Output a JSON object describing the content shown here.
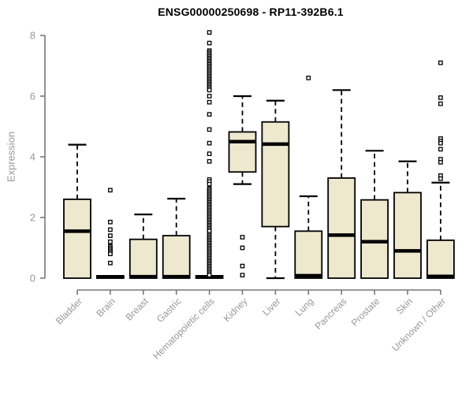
{
  "chart_data": {
    "type": "boxplot",
    "title": "ENSG00000250698 - RP11-392B6.1",
    "ylabel": "Expression",
    "xlabel": "",
    "ylim": [
      0,
      8
    ],
    "yticks": [
      0,
      2,
      4,
      6,
      8
    ],
    "grid": false,
    "legend": "none",
    "categories": [
      "Bladder",
      "Brain",
      "Breast",
      "Gastric",
      "Hematopoietic cells",
      "Kidney",
      "Liver",
      "Lung",
      "Pancreas",
      "Prostate",
      "Skin",
      "Unknown / Other"
    ],
    "boxes": [
      {
        "category": "Bladder",
        "whisker_low": 0,
        "q1": 0,
        "median": 1.55,
        "q3": 2.6,
        "whisker_high": 4.4,
        "outliers": []
      },
      {
        "category": "Brain",
        "whisker_low": 0,
        "q1": 0,
        "median": 0.04,
        "q3": 0.08,
        "whisker_high": 0.08,
        "outliers": [
          2.9,
          1.85,
          1.6,
          1.4,
          1.2,
          1.05,
          1.0,
          0.95,
          0.9,
          0.85,
          0.8,
          0.5
        ]
      },
      {
        "category": "Breast",
        "whisker_low": 0,
        "q1": 0,
        "median": 0.05,
        "q3": 1.28,
        "whisker_high": 2.1,
        "outliers": []
      },
      {
        "category": "Gastric",
        "whisker_low": 0,
        "q1": 0,
        "median": 0.05,
        "q3": 1.4,
        "whisker_high": 2.62,
        "outliers": []
      },
      {
        "category": "Hematopoietic cells",
        "whisker_low": 0,
        "q1": 0,
        "median": 0.04,
        "q3": 0.08,
        "whisker_high": 0.08,
        "outliers": [
          8.1,
          7.75,
          7.5,
          7.45,
          7.4,
          7.35,
          7.3,
          7.25,
          7.2,
          7.15,
          7.1,
          7.05,
          7.0,
          6.95,
          6.9,
          6.85,
          6.8,
          6.75,
          6.7,
          6.65,
          6.6,
          6.55,
          6.5,
          6.45,
          6.4,
          6.35,
          6.3,
          6.25,
          6.2,
          6.0,
          5.8,
          5.4,
          4.9,
          4.45,
          4.1,
          3.85,
          3.25,
          3.18,
          3.1,
          2.95,
          2.9,
          2.85,
          2.8,
          2.75,
          2.7,
          2.65,
          2.6,
          2.55,
          2.5,
          2.45,
          2.4,
          2.35,
          2.3,
          2.25,
          2.2,
          2.15,
          2.1,
          2.05,
          2.0,
          1.95,
          1.9,
          1.85,
          1.8,
          1.75,
          1.7,
          1.65,
          1.6,
          1.55,
          1.45,
          1.4,
          1.35,
          1.3,
          1.25,
          1.2,
          1.15,
          1.1,
          1.05,
          1.0,
          0.95,
          0.9,
          0.85,
          0.8,
          0.75,
          0.7,
          0.65,
          0.6,
          0.55,
          0.5,
          0.45,
          0.4,
          0.35,
          0.3,
          0.25,
          0.2,
          0.15,
          0.1
        ]
      },
      {
        "category": "Kidney",
        "whisker_low": 3.1,
        "q1": 3.5,
        "median": 4.5,
        "q3": 4.82,
        "whisker_high": 6.0,
        "outliers": [
          1.35,
          1.0,
          0.4,
          0.1
        ]
      },
      {
        "category": "Liver",
        "whisker_low": 0,
        "q1": 1.7,
        "median": 4.42,
        "q3": 5.15,
        "whisker_high": 5.85,
        "outliers": []
      },
      {
        "category": "Lung",
        "whisker_low": 0,
        "q1": 0,
        "median": 0.08,
        "q3": 1.55,
        "whisker_high": 2.7,
        "outliers": [
          6.6
        ]
      },
      {
        "category": "Pancreas",
        "whisker_low": 0,
        "q1": 0,
        "median": 1.42,
        "q3": 3.3,
        "whisker_high": 6.2,
        "outliers": []
      },
      {
        "category": "Prostate",
        "whisker_low": 0,
        "q1": 0,
        "median": 1.2,
        "q3": 2.58,
        "whisker_high": 4.2,
        "outliers": []
      },
      {
        "category": "Skin",
        "whisker_low": 0,
        "q1": 0,
        "median": 0.9,
        "q3": 2.82,
        "whisker_high": 3.85,
        "outliers": []
      },
      {
        "category": "Unknown / Other",
        "whisker_low": 0,
        "q1": 0,
        "median": 0.06,
        "q3": 1.25,
        "whisker_high": 3.15,
        "outliers": [
          7.1,
          5.95,
          5.75,
          4.6,
          4.52,
          4.45,
          4.25,
          3.92,
          3.82,
          3.38,
          3.28
        ]
      }
    ],
    "colors": {
      "box_fill": "#EDE8CE",
      "box_border": "#000000",
      "median": "#000000",
      "whisker": "#000000",
      "outlier_fill": "#FFFFFF",
      "outlier_border": "#000000",
      "axis_line": "#777777",
      "tick_text": "#989898",
      "title_text": "#000000",
      "background": "#FFFFFF"
    }
  }
}
